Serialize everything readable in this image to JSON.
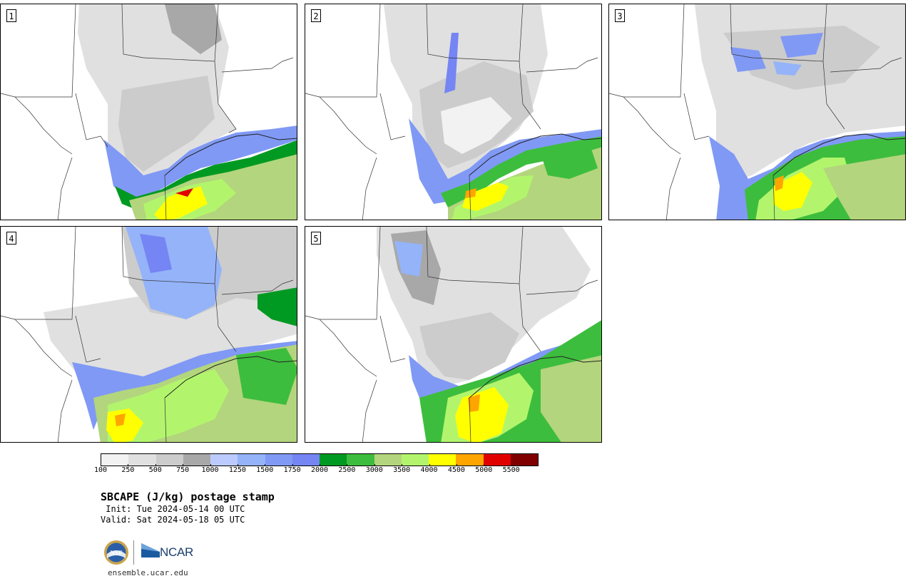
{
  "panels": [
    {
      "label": "1"
    },
    {
      "label": "2"
    },
    {
      "label": "3"
    },
    {
      "label": "4"
    },
    {
      "label": "5"
    }
  ],
  "colorbar": {
    "colors": [
      "#f2f2f2",
      "#e0e0e0",
      "#cccccc",
      "#a8a8a8",
      "#bccbfd",
      "#94b3f9",
      "#8099f5",
      "#7585f3",
      "#009922",
      "#3dbd3d",
      "#b3d57d",
      "#b2f56d",
      "#ffff00",
      "#ffa500",
      "#e00000",
      "#800000"
    ],
    "ticks": [
      "100",
      "250",
      "500",
      "750",
      "1000",
      "1250",
      "1500",
      "1750",
      "2000",
      "2500",
      "3000",
      "3500",
      "4000",
      "4500",
      "5000",
      "5500"
    ]
  },
  "title": "SBCAPE (J/kg) postage stamp",
  "init": " Init: Tue 2024-05-14 00 UTC",
  "valid": "Valid: Sat 2024-05-18 05 UTC",
  "logos": {
    "nsf": "NSF",
    "ncar": "NCAR"
  },
  "footer": "ensemble.ucar.edu"
}
